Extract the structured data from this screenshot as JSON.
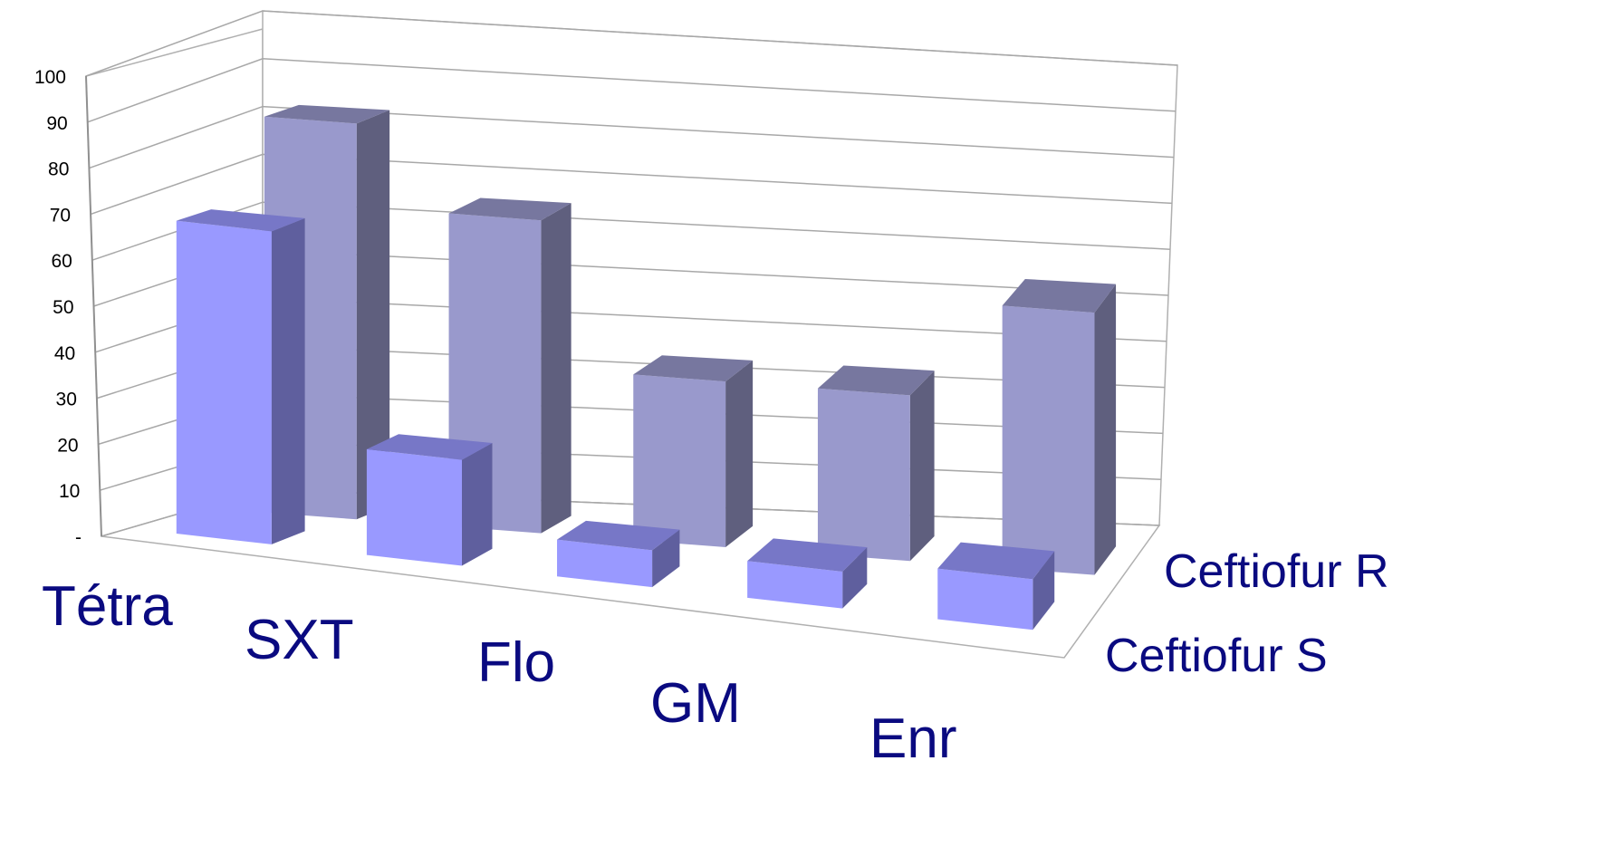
{
  "chart_data": {
    "type": "bar",
    "categories": [
      "Tétra",
      "SXT",
      "Flo",
      "GM",
      "Enr"
    ],
    "series": [
      {
        "name": "Ceftiofur S",
        "values": [
          68,
          23,
          8,
          8,
          11
        ],
        "color": "#9999ff"
      },
      {
        "name": "Ceftiofur R",
        "values": [
          86,
          68,
          36,
          36,
          57
        ],
        "color": "#9999cc"
      }
    ],
    "ylim": [
      0,
      100
    ],
    "yticks": [
      "-",
      "10",
      "20",
      "30",
      "40",
      "50",
      "60",
      "70",
      "80",
      "90",
      "100"
    ],
    "grid": true,
    "title": "",
    "xlabel": "",
    "ylabel": ""
  }
}
